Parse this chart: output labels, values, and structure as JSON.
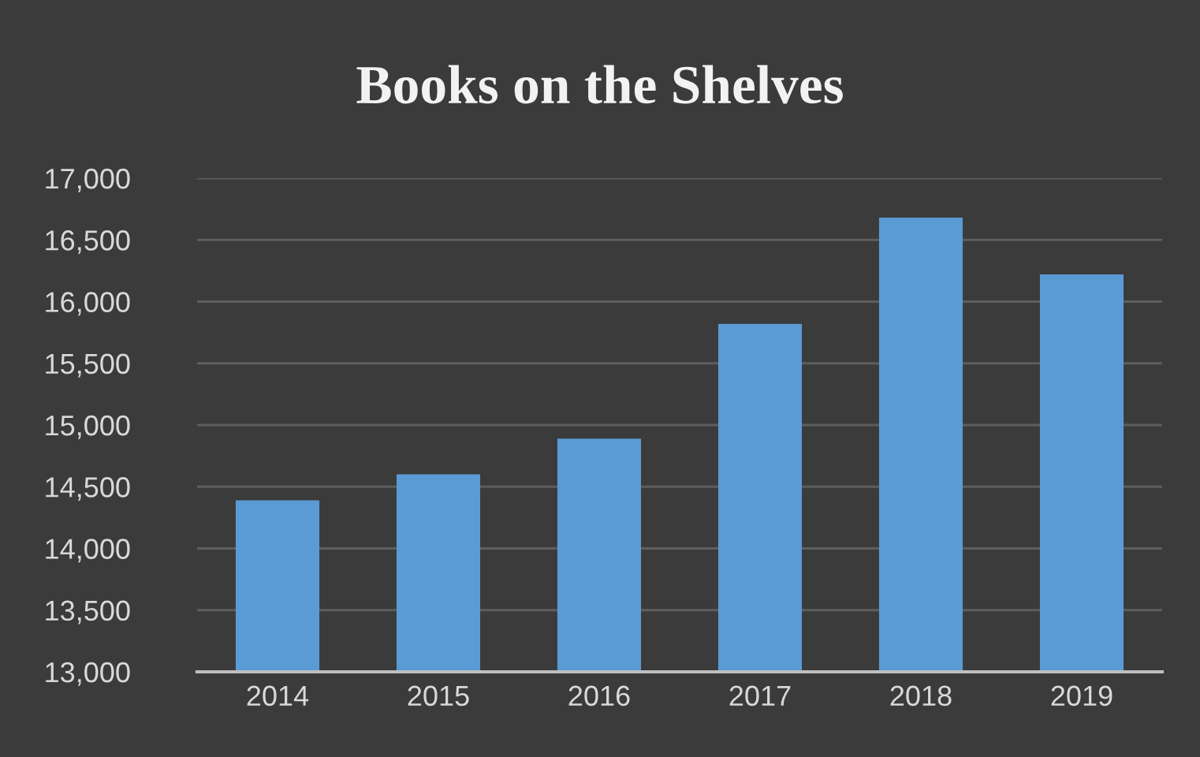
{
  "chart_data": {
    "type": "bar",
    "title": "Books on the Shelves",
    "categories": [
      "2014",
      "2015",
      "2016",
      "2017",
      "2018",
      "2019"
    ],
    "values": [
      14390,
      14600,
      14890,
      15820,
      16680,
      16220
    ],
    "color": "#5b9bd5",
    "ylim": [
      13000,
      17000
    ],
    "yticks": [
      {
        "value": 13000,
        "label": "13,000"
      },
      {
        "value": 13500,
        "label": "13,500"
      },
      {
        "value": 14000,
        "label": "14,000"
      },
      {
        "value": 14500,
        "label": "14,500"
      },
      {
        "value": 15000,
        "label": "15,000"
      },
      {
        "value": 15500,
        "label": "15,500"
      },
      {
        "value": 16000,
        "label": "16,000"
      },
      {
        "value": 16500,
        "label": "16,500"
      },
      {
        "value": 17000,
        "label": "17,000"
      }
    ],
    "grid": "y",
    "legend": false
  }
}
